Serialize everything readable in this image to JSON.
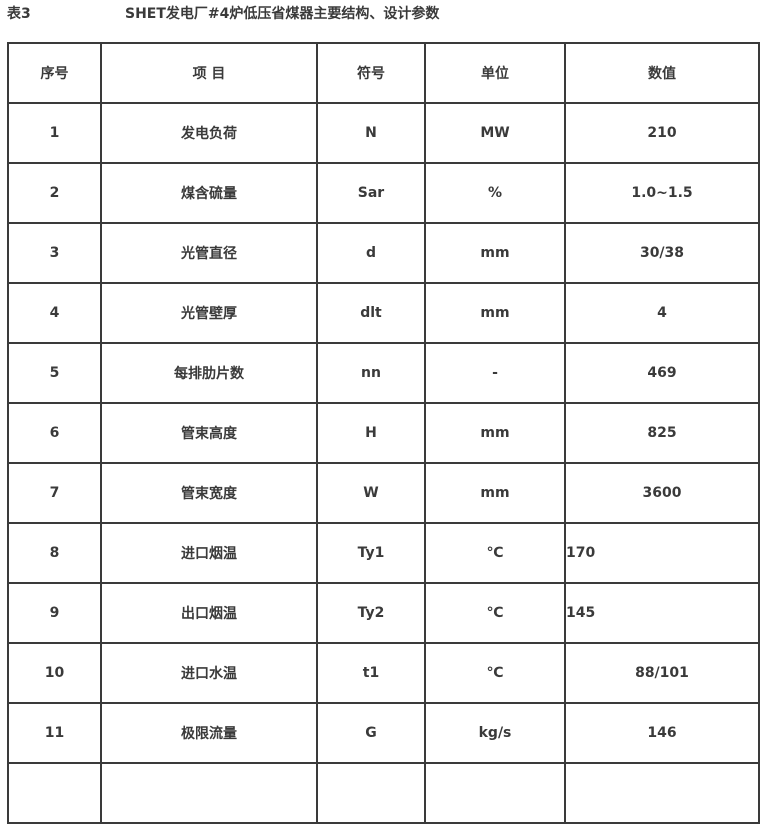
{
  "caption": {
    "label": "表3",
    "title": "SHET发电厂#4炉低压省煤器主要结构、设计参数"
  },
  "table": {
    "headers": [
      "序号",
      "项 目",
      "符号",
      "单位",
      "数值"
    ],
    "rows": [
      [
        "1",
        "发电负荷",
        "N",
        "MW",
        "210"
      ],
      [
        "2",
        "煤含硫量",
        "Sar",
        "%",
        "1.0~1.5"
      ],
      [
        "3",
        "光管直径",
        "d",
        "mm",
        "30/38"
      ],
      [
        "4",
        "光管壁厚",
        "dlt",
        "mm",
        "4"
      ],
      [
        "5",
        "每排肋片数",
        "nn",
        "-",
        "469"
      ],
      [
        "6",
        "管束高度",
        "H",
        "mm",
        "825"
      ],
      [
        "7",
        "管束宽度",
        "W",
        "mm",
        "3600"
      ],
      [
        "8",
        "进口烟温",
        "Ty1",
        "℃",
        "170"
      ],
      [
        "9",
        "出口烟温",
        "Ty2",
        "℃",
        "145"
      ],
      [
        "10",
        "进口水温",
        "t1",
        "℃",
        "88/101"
      ],
      [
        "11",
        "极限流量",
        "G",
        "kg/s",
        "146"
      ]
    ],
    "left_aligned_value_rows": [
      8,
      9
    ]
  }
}
